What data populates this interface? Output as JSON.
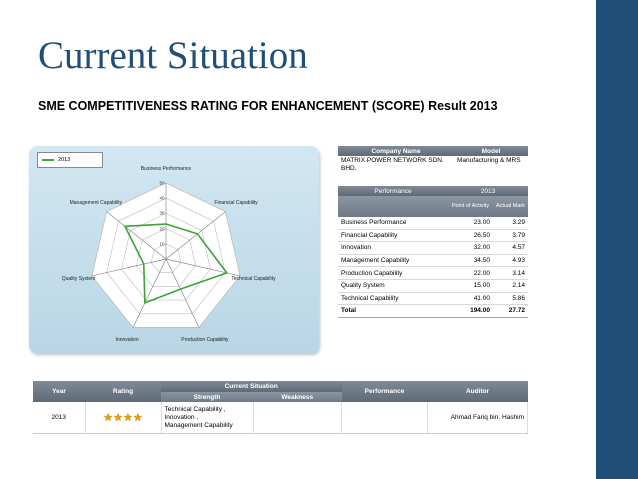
{
  "slide": {
    "title": "Current Situation",
    "subtitle": "SME COMPETITIVENESS RATING FOR ENHANCEMENT (SCORE) Result 2013",
    "colors": {
      "title": "#1f4e79",
      "sidebar": "#1f4e79",
      "series": "#3aa33a"
    }
  },
  "radar": {
    "legend": "2013",
    "axes": [
      "Business Performance",
      "Financial Capability",
      "Technical Capability",
      "Production Capability",
      "Innovation",
      "Quality System",
      "Management Capability"
    ],
    "ticks": [
      "10",
      "20",
      "30",
      "40",
      "50"
    ]
  },
  "company_table": {
    "headers": [
      "Company Name",
      "Model"
    ],
    "company": "MATRIX POWER NETWORK SDN. BHD.",
    "model": "Manufacturing & MRS"
  },
  "performance_table": {
    "headers": {
      "performance": "Performance",
      "year": "2013",
      "point": "Point of Activity",
      "mark": "Actual Mark"
    },
    "rows": [
      {
        "name": "Business Performance",
        "point": "23.00",
        "mark": "3.29"
      },
      {
        "name": "Financial Capability",
        "point": "26.50",
        "mark": "3.79"
      },
      {
        "name": "Innovation",
        "point": "32.00",
        "mark": "4.57"
      },
      {
        "name": "Management Capability",
        "point": "34.50",
        "mark": "4.93"
      },
      {
        "name": "Production Capability",
        "point": "22.00",
        "mark": "3.14"
      },
      {
        "name": "Quality System",
        "point": "15.00",
        "mark": "2.14"
      },
      {
        "name": "Technical Capability",
        "point": "41.00",
        "mark": "5.86"
      }
    ],
    "total": {
      "name": "Total",
      "point": "194.00",
      "mark": "27.72"
    }
  },
  "summary_table": {
    "headers": {
      "year": "Year",
      "rating": "Rating",
      "current": "Current Situation",
      "strength": "Strength",
      "weakness": "Weakness",
      "performance": "Performance",
      "auditor": "Auditor"
    },
    "row": {
      "year": "2013",
      "stars": 4,
      "strength": [
        "Technical Capability ,",
        "Innovation ,",
        "Management Capability"
      ],
      "auditor": "Ahmad Fariq bin. Hashim"
    }
  },
  "chart_data": {
    "type": "radar",
    "categories": [
      "Business Performance",
      "Financial Capability",
      "Technical Capability",
      "Production Capability",
      "Innovation",
      "Quality System",
      "Management Capability"
    ],
    "series": [
      {
        "name": "2013",
        "values": [
          23.0,
          26.5,
          41.0,
          22.0,
          32.0,
          15.0,
          34.5
        ]
      }
    ],
    "rmax": 50,
    "ticks": [
      10,
      20,
      30,
      40,
      50
    ],
    "legend": "top-left"
  }
}
